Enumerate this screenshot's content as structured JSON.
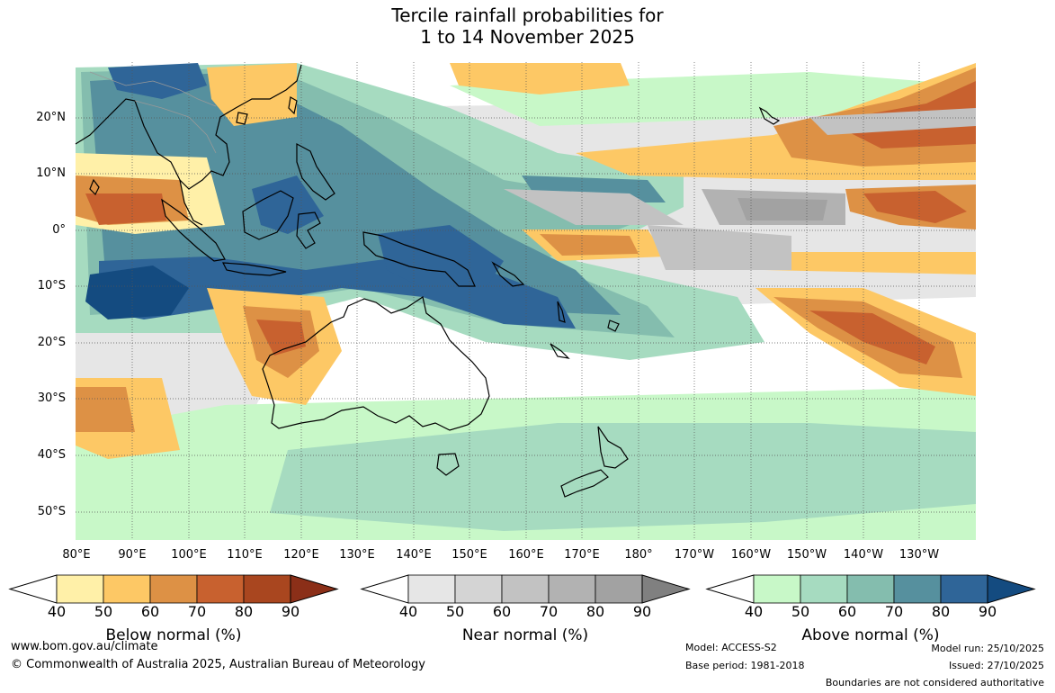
{
  "title_line1": "Tercile rainfall probabilities for",
  "title_line2": "1 to 14 November 2025",
  "lat_labels": [
    "20°N",
    "10°N",
    "0°",
    "10°S",
    "20°S",
    "30°S",
    "40°S",
    "50°S"
  ],
  "lon_labels": [
    "80°E",
    "90°E",
    "100°E",
    "110°E",
    "120°E",
    "130°E",
    "140°E",
    "150°E",
    "160°E",
    "170°E",
    "180°",
    "170°W",
    "160°W",
    "150°W",
    "140°W",
    "130°W"
  ],
  "legends": [
    {
      "title": "Below normal (%)",
      "ticks": [
        "40",
        "50",
        "60",
        "70",
        "80",
        "90"
      ],
      "colors": [
        "#fff0a8",
        "#fdc865",
        "#dd9145",
        "#c8612f",
        "#a9461f",
        "#8b2f18"
      ]
    },
    {
      "title": "Near normal (%)",
      "ticks": [
        "40",
        "50",
        "60",
        "70",
        "80",
        "90"
      ],
      "colors": [
        "#e6e6e6",
        "#d4d4d4",
        "#c2c2c2",
        "#b2b2b2",
        "#a2a2a2",
        "#808080"
      ]
    },
    {
      "title": "Above normal (%)",
      "ticks": [
        "40",
        "50",
        "60",
        "70",
        "80",
        "90"
      ],
      "colors": [
        "#c8f8c8",
        "#a6dbc0",
        "#84bdae",
        "#56909e",
        "#2f6598",
        "#144b80"
      ]
    }
  ],
  "footer": {
    "website": "www.bom.gov.au/climate",
    "copyright": "© Commonwealth of Australia 2025, Australian Bureau of Meteorology",
    "model": "Model: ACCESS-S2",
    "base_period": "Base period: 1981-2018",
    "model_run": "Model run: 25/10/2025",
    "issued": "Issued: 27/10/2025",
    "boundaries": "Boundaries are not considered authoritative"
  }
}
